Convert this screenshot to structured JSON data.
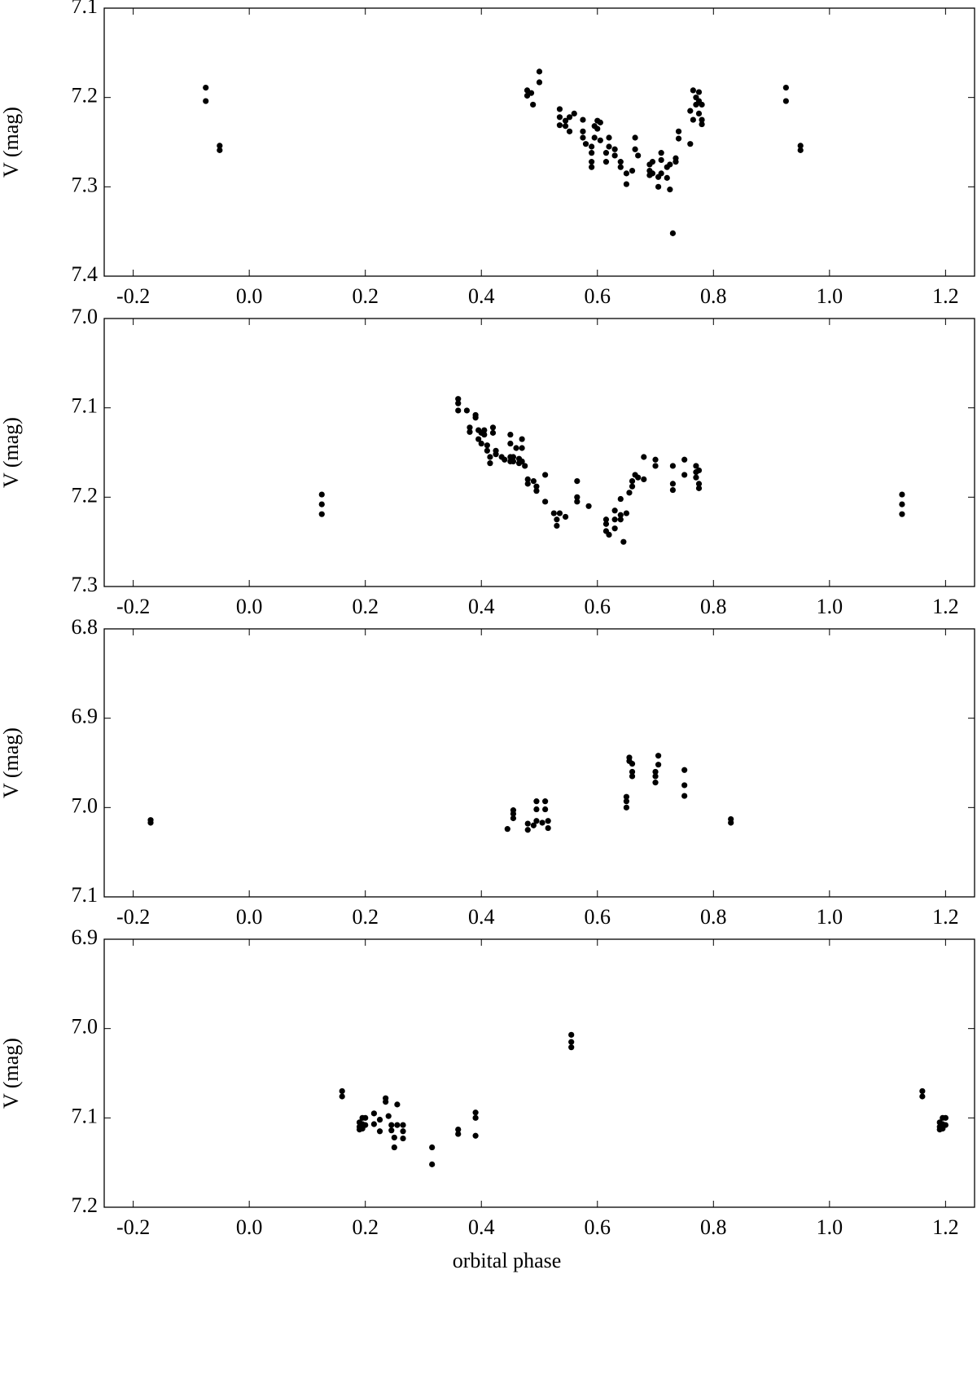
{
  "chart_data": [
    {
      "type": "scatter",
      "ylabel": "V (mag)",
      "color": "#000000",
      "xlim": [
        -0.25,
        1.25
      ],
      "ylim": [
        7.1,
        7.4
      ],
      "y_inverted": true,
      "xticks": [
        -0.2,
        {
          "value": 0,
          "label": "0.0"
        },
        0.2,
        0.4,
        0.6,
        0.8,
        {
          "value": 1,
          "label": "1.0"
        },
        1.2
      ],
      "yticks": [
        7.1,
        7.2,
        7.3,
        7.4
      ],
      "x": [
        -0.075,
        -0.075,
        -0.051,
        -0.051,
        0.479,
        0.479,
        0.486,
        0.489,
        0.5,
        0.5,
        0.535,
        0.535,
        0.535,
        0.545,
        0.545,
        0.552,
        0.552,
        0.56,
        0.575,
        0.575,
        0.575,
        0.58,
        0.59,
        0.59,
        0.59,
        0.59,
        0.595,
        0.595,
        0.6,
        0.6,
        0.605,
        0.605,
        0.615,
        0.615,
        0.62,
        0.62,
        0.63,
        0.63,
        0.64,
        0.64,
        0.65,
        0.65,
        0.66,
        0.665,
        0.665,
        0.67,
        0.69,
        0.69,
        0.69,
        0.695,
        0.695,
        0.705,
        0.705,
        0.71,
        0.71,
        0.71,
        0.72,
        0.72,
        0.725,
        0.725,
        0.73,
        0.735,
        0.735,
        0.74,
        0.74,
        0.76,
        0.76,
        0.765,
        0.765,
        0.77,
        0.77,
        0.775,
        0.775,
        0.775,
        0.78,
        0.78,
        0.78,
        0.925,
        0.925,
        0.95,
        0.95
      ],
      "y": [
        7.189,
        7.204,
        7.254,
        7.259,
        7.192,
        7.198,
        7.195,
        7.208,
        7.171,
        7.183,
        7.213,
        7.222,
        7.231,
        7.226,
        7.232,
        7.238,
        7.222,
        7.218,
        7.225,
        7.238,
        7.245,
        7.252,
        7.255,
        7.262,
        7.272,
        7.278,
        7.232,
        7.245,
        7.226,
        7.235,
        7.228,
        7.248,
        7.262,
        7.272,
        7.245,
        7.255,
        7.258,
        7.265,
        7.272,
        7.278,
        7.285,
        7.297,
        7.282,
        7.245,
        7.258,
        7.265,
        7.275,
        7.282,
        7.287,
        7.272,
        7.285,
        7.289,
        7.3,
        7.262,
        7.27,
        7.285,
        7.278,
        7.29,
        7.303,
        7.275,
        7.352,
        7.268,
        7.272,
        7.238,
        7.246,
        7.215,
        7.252,
        7.192,
        7.225,
        7.2,
        7.208,
        7.194,
        7.204,
        7.218,
        7.208,
        7.225,
        7.23,
        7.189,
        7.204,
        7.254,
        7.259
      ]
    },
    {
      "type": "scatter",
      "ylabel": "V (mag)",
      "color": "#000000",
      "xlim": [
        -0.25,
        1.25
      ],
      "ylim": [
        7,
        7.3
      ],
      "y_inverted": true,
      "xticks": [
        -0.2,
        {
          "value": 0,
          "label": "0.0"
        },
        0.2,
        0.4,
        0.6,
        0.8,
        {
          "value": 1,
          "label": "1.0"
        },
        1.2
      ],
      "yticks": [
        {
          "value": 7,
          "label": "7.0"
        },
        7.1,
        7.2,
        7.3
      ],
      "x": [
        0.125,
        0.125,
        0.125,
        0.36,
        0.36,
        0.36,
        0.375,
        0.38,
        0.38,
        0.39,
        0.39,
        0.395,
        0.395,
        0.4,
        0.4,
        0.405,
        0.405,
        0.41,
        0.41,
        0.415,
        0.415,
        0.42,
        0.42,
        0.425,
        0.425,
        0.435,
        0.44,
        0.45,
        0.45,
        0.45,
        0.45,
        0.455,
        0.455,
        0.46,
        0.465,
        0.465,
        0.47,
        0.47,
        0.47,
        0.475,
        0.48,
        0.48,
        0.49,
        0.495,
        0.495,
        0.51,
        0.51,
        0.525,
        0.53,
        0.53,
        0.535,
        0.545,
        0.565,
        0.565,
        0.565,
        0.585,
        0.615,
        0.615,
        0.615,
        0.62,
        0.63,
        0.63,
        0.63,
        0.64,
        0.64,
        0.64,
        0.645,
        0.65,
        0.655,
        0.66,
        0.66,
        0.665,
        0.67,
        0.68,
        0.68,
        0.7,
        0.7,
        0.73,
        0.73,
        0.73,
        0.75,
        0.75,
        0.77,
        0.77,
        0.77,
        0.775,
        0.775,
        0.775,
        1.125,
        1.125,
        1.125
      ],
      "y": [
        7.197,
        7.208,
        7.219,
        7.09,
        7.095,
        7.103,
        7.103,
        7.122,
        7.127,
        7.108,
        7.111,
        7.125,
        7.135,
        7.128,
        7.14,
        7.125,
        7.13,
        7.142,
        7.148,
        7.155,
        7.162,
        7.122,
        7.128,
        7.148,
        7.152,
        7.155,
        7.158,
        7.13,
        7.14,
        7.155,
        7.16,
        7.155,
        7.16,
        7.145,
        7.157,
        7.162,
        7.135,
        7.145,
        7.16,
        7.165,
        7.18,
        7.185,
        7.182,
        7.188,
        7.193,
        7.175,
        7.205,
        7.218,
        7.225,
        7.232,
        7.218,
        7.222,
        7.182,
        7.2,
        7.205,
        7.21,
        7.225,
        7.23,
        7.238,
        7.242,
        7.215,
        7.225,
        7.235,
        7.202,
        7.22,
        7.225,
        7.25,
        7.218,
        7.195,
        7.182,
        7.188,
        7.175,
        7.178,
        7.155,
        7.18,
        7.158,
        7.165,
        7.165,
        7.185,
        7.192,
        7.158,
        7.175,
        7.165,
        7.172,
        7.178,
        7.17,
        7.185,
        7.19,
        7.197,
        7.208,
        7.219
      ]
    },
    {
      "type": "scatter",
      "ylabel": "V (mag)",
      "color": "#000000",
      "xlim": [
        -0.25,
        1.25
      ],
      "ylim": [
        6.8,
        7.1
      ],
      "y_inverted": true,
      "xticks": [
        -0.2,
        {
          "value": 0,
          "label": "0.0"
        },
        0.2,
        0.4,
        0.6,
        0.8,
        {
          "value": 1,
          "label": "1.0"
        },
        1.2
      ],
      "yticks": [
        6.8,
        6.9,
        {
          "value": 7,
          "label": "7.0"
        },
        7.1
      ],
      "x": [
        -0.17,
        -0.17,
        0.445,
        0.455,
        0.455,
        0.455,
        0.48,
        0.48,
        0.49,
        0.495,
        0.495,
        0.495,
        0.505,
        0.51,
        0.51,
        0.515,
        0.515,
        0.65,
        0.65,
        0.65,
        0.655,
        0.655,
        0.66,
        0.66,
        0.66,
        0.7,
        0.7,
        0.7,
        0.705,
        0.705,
        0.75,
        0.75,
        0.75,
        0.83,
        0.83
      ],
      "y": [
        7.014,
        7.017,
        7.024,
        7.003,
        7.007,
        7.012,
        7.018,
        7.025,
        7.02,
        6.993,
        7.002,
        7.015,
        7.017,
        6.993,
        7.002,
        7.015,
        7.023,
        6.988,
        6.993,
        7.0,
        6.944,
        6.948,
        6.951,
        6.96,
        6.965,
        6.96,
        6.965,
        6.972,
        6.942,
        6.952,
        6.958,
        6.975,
        6.987,
        7.013,
        7.017
      ]
    },
    {
      "type": "scatter",
      "ylabel": "V (mag)",
      "xlabel": "orbital phase",
      "color": "#000000",
      "xlim": [
        -0.25,
        1.25
      ],
      "ylim": [
        6.9,
        7.2
      ],
      "y_inverted": true,
      "xticks": [
        -0.2,
        {
          "value": 0,
          "label": "0.0"
        },
        0.2,
        0.4,
        0.6,
        0.8,
        {
          "value": 1,
          "label": "1.0"
        },
        1.2
      ],
      "yticks": [
        6.9,
        {
          "value": 7,
          "label": "7.0"
        },
        7.1,
        7.2
      ],
      "x": [
        0.16,
        0.16,
        0.19,
        0.19,
        0.19,
        0.195,
        0.195,
        0.195,
        0.2,
        0.2,
        0.215,
        0.215,
        0.225,
        0.225,
        0.235,
        0.235,
        0.24,
        0.245,
        0.245,
        0.25,
        0.25,
        0.255,
        0.255,
        0.265,
        0.265,
        0.265,
        0.315,
        0.315,
        0.36,
        0.36,
        0.39,
        0.39,
        0.39,
        0.555,
        0.555,
        0.555,
        1.16,
        1.16,
        1.19,
        1.19,
        1.19,
        1.195,
        1.195,
        1.195,
        1.2,
        1.2
      ],
      "y": [
        7.07,
        7.076,
        7.105,
        7.11,
        7.113,
        7.1,
        7.107,
        7.112,
        7.1,
        7.108,
        7.095,
        7.107,
        7.102,
        7.115,
        7.078,
        7.082,
        7.098,
        7.108,
        7.114,
        7.122,
        7.133,
        7.085,
        7.108,
        7.108,
        7.115,
        7.123,
        7.133,
        7.152,
        7.113,
        7.118,
        7.094,
        7.1,
        7.12,
        7.007,
        7.015,
        7.021,
        7.07,
        7.076,
        7.105,
        7.11,
        7.113,
        7.1,
        7.107,
        7.112,
        7.1,
        7.108
      ]
    }
  ]
}
